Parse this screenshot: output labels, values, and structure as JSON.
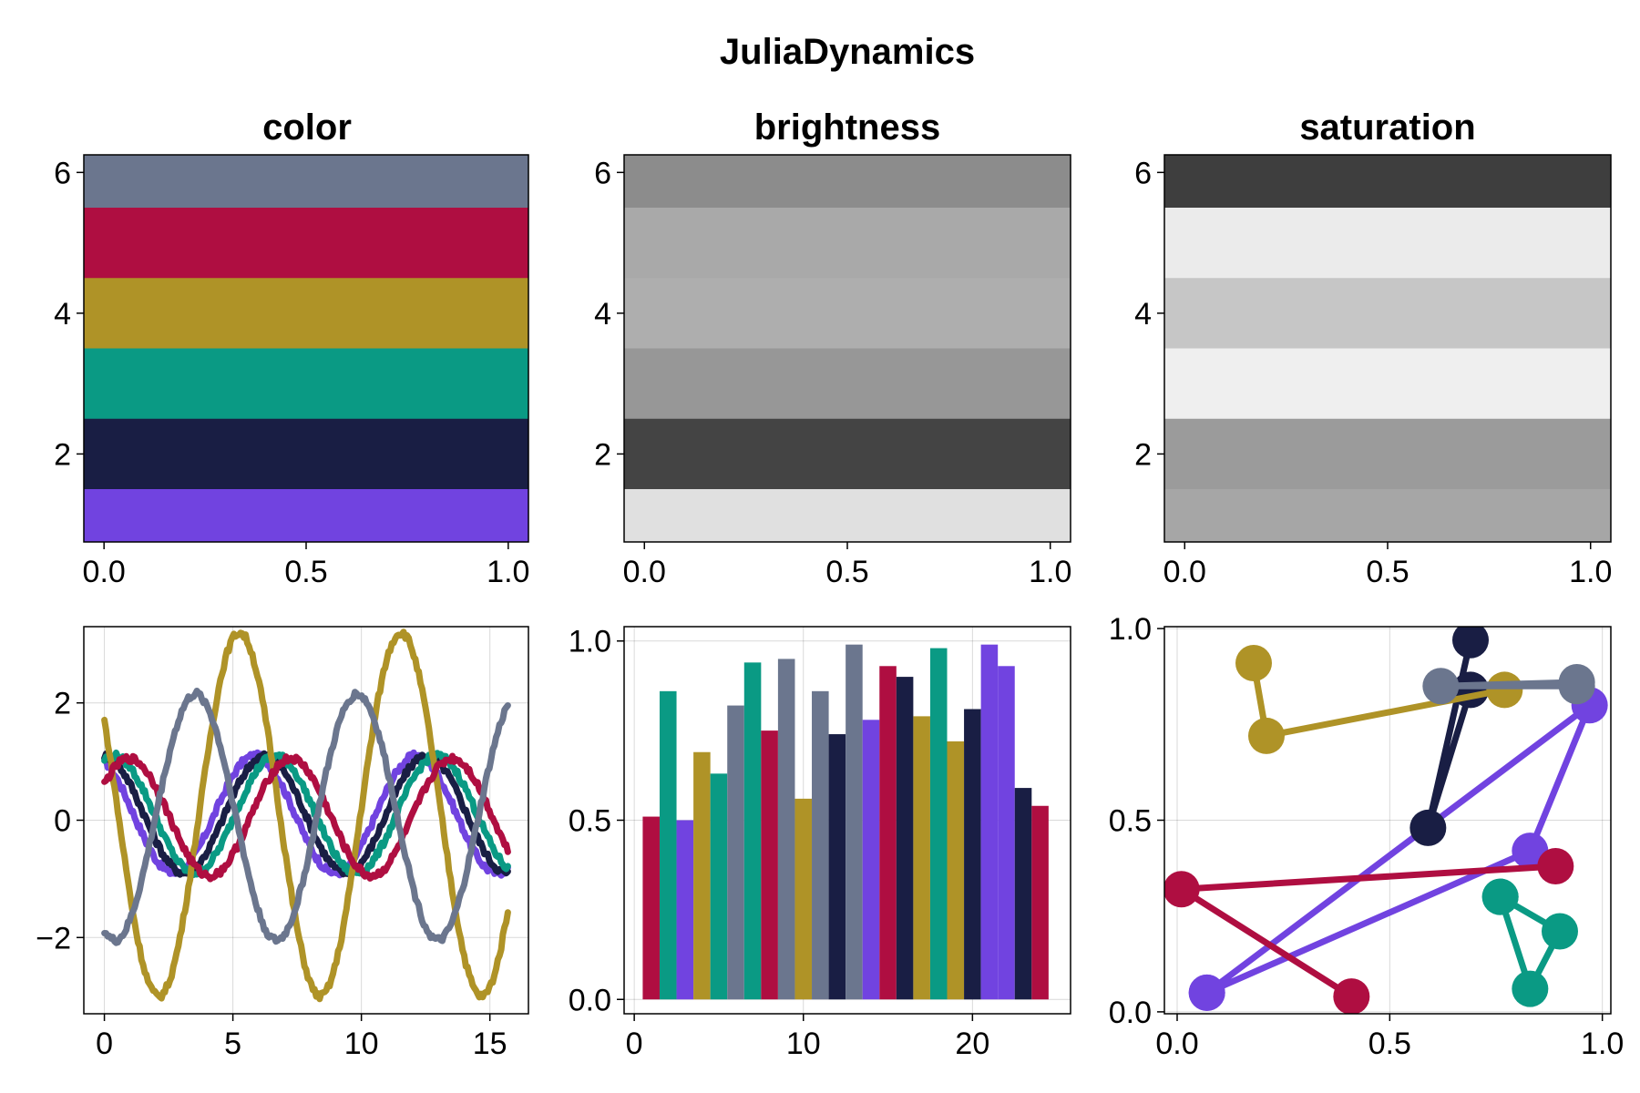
{
  "figure_title": "JuliaDynamics",
  "palette": [
    "#7143E0",
    "#191E44",
    "#0A9A84",
    "#AF9327",
    "#AF0E41",
    "#6B768E"
  ],
  "chart_data": [
    {
      "type": "heatmap",
      "title": "color",
      "xlim": [
        -0.05,
        1.05
      ],
      "ylim": [
        0.75,
        6.25
      ],
      "xticks": [
        0.0,
        0.5,
        1.0
      ],
      "xticklabels": [
        "0.0",
        "0.5",
        "1.0"
      ],
      "yticks": [
        2,
        4,
        6
      ],
      "yticklabels": [
        "2",
        "4",
        "6"
      ],
      "bands": [
        {
          "level": 1,
          "color": "#7143E0"
        },
        {
          "level": 2,
          "color": "#191E44"
        },
        {
          "level": 3,
          "color": "#0A9A84"
        },
        {
          "level": 4,
          "color": "#AF9327"
        },
        {
          "level": 5,
          "color": "#AF0E41"
        },
        {
          "level": 6,
          "color": "#6B768E"
        }
      ],
      "grid": false
    },
    {
      "type": "heatmap",
      "title": "brightness",
      "xlim": [
        -0.05,
        1.05
      ],
      "ylim": [
        0.75,
        6.25
      ],
      "xticks": [
        0.0,
        0.5,
        1.0
      ],
      "xticklabels": [
        "0.0",
        "0.5",
        "1.0"
      ],
      "yticks": [
        2,
        4,
        6
      ],
      "yticklabels": [
        "2",
        "4",
        "6"
      ],
      "bands": [
        {
          "level": 1,
          "color": "#E0E0E0"
        },
        {
          "level": 2,
          "color": "#444444"
        },
        {
          "level": 3,
          "color": "#979797"
        },
        {
          "level": 4,
          "color": "#AEAEAE"
        },
        {
          "level": 5,
          "color": "#A9A9A9"
        },
        {
          "level": 6,
          "color": "#8C8C8C"
        }
      ],
      "grid": false
    },
    {
      "type": "heatmap",
      "title": "saturation",
      "xlim": [
        -0.05,
        1.05
      ],
      "ylim": [
        0.75,
        6.25
      ],
      "xticks": [
        0.0,
        0.5,
        1.0
      ],
      "xticklabels": [
        "0.0",
        "0.5",
        "1.0"
      ],
      "yticks": [
        2,
        4,
        6
      ],
      "yticklabels": [
        "2",
        "4",
        "6"
      ],
      "bands": [
        {
          "level": 1,
          "color": "#A6A6A6"
        },
        {
          "level": 2,
          "color": "#9B9B9B"
        },
        {
          "level": 3,
          "color": "#EFEFEF"
        },
        {
          "level": 4,
          "color": "#C6C6C6"
        },
        {
          "level": 5,
          "color": "#EBEBEB"
        },
        {
          "level": 6,
          "color": "#3E3E3E"
        }
      ],
      "grid": false
    },
    {
      "type": "line",
      "title": "",
      "xlim": [
        -0.8,
        16.5
      ],
      "ylim": [
        -3.3,
        3.3
      ],
      "xticks": [
        0,
        5,
        10,
        15
      ],
      "xticklabels": [
        "0",
        "5",
        "10",
        "15"
      ],
      "yticks": [
        -2,
        0,
        2
      ],
      "yticklabels": [
        "−2",
        "0",
        "2"
      ],
      "x_range": [
        0,
        15.7
      ],
      "series": [
        {
          "color": "#7143E0",
          "amplitude": 1.0,
          "phase": 2.0,
          "offset": 0.1,
          "noise": 0.06
        },
        {
          "color": "#191E44",
          "amplitude": 1.0,
          "phase": 1.6,
          "offset": 0.1,
          "noise": 0.06
        },
        {
          "color": "#0A9A84",
          "amplitude": 1.0,
          "phase": 1.2,
          "offset": 0.1,
          "noise": 0.06
        },
        {
          "color": "#AF9327",
          "amplitude": 3.1,
          "phase": 2.6,
          "offset": 0.1,
          "noise": 0.06
        },
        {
          "color": "#AF0E41",
          "amplitude": 1.0,
          "phase": 0.6,
          "offset": 0.05,
          "noise": 0.06
        },
        {
          "color": "#6B768E",
          "amplitude": 2.1,
          "phase": 4.3,
          "offset": 0.05,
          "noise": 0.06
        }
      ],
      "grid": true
    },
    {
      "type": "bar",
      "title": "",
      "xlim": [
        -0.6,
        25.8
      ],
      "ylim": [
        -0.04,
        1.04
      ],
      "xticks": [
        0,
        10,
        20
      ],
      "xticklabels": [
        "0",
        "10",
        "20"
      ],
      "yticks": [
        0.0,
        0.5,
        1.0
      ],
      "yticklabels": [
        "0.0",
        "0.5",
        "1.0"
      ],
      "x": [
        1,
        2,
        3,
        4,
        5,
        6,
        7,
        8,
        9,
        10,
        11,
        12,
        13,
        14,
        15,
        16,
        17,
        18,
        19,
        20,
        21,
        22,
        23,
        24
      ],
      "values": [
        0.51,
        0.86,
        0.5,
        0.69,
        0.63,
        0.82,
        0.94,
        0.75,
        0.95,
        0.56,
        0.86,
        0.74,
        0.99,
        0.78,
        0.93,
        0.9,
        0.79,
        0.98,
        0.72,
        0.81,
        0.99,
        0.93,
        0.59,
        0.54
      ],
      "colors": [
        "#AF0E41",
        "#0A9A84",
        "#7143E0",
        "#AF9327",
        "#0A9A84",
        "#6B768E",
        "#0A9A84",
        "#AF0E41",
        "#6B768E",
        "#AF9327",
        "#6B768E",
        "#191E44",
        "#6B768E",
        "#7143E0",
        "#AF0E41",
        "#191E44",
        "#AF9327",
        "#0A9A84",
        "#AF9327",
        "#191E44",
        "#7143E0",
        "#7143E0",
        "#191E44",
        "#AF0E41"
      ],
      "grid": true
    },
    {
      "type": "scatter",
      "title": "",
      "xlim": [
        -0.03,
        1.02
      ],
      "ylim": [
        -0.005,
        1.005
      ],
      "xticks": [
        0.0,
        0.5,
        1.0
      ],
      "xticklabels": [
        "0.0",
        "0.5",
        "1.0"
      ],
      "yticks": [
        0.0,
        0.5,
        1.0
      ],
      "yticklabels": [
        "0.0",
        "0.5",
        "1.0"
      ],
      "series": [
        {
          "color": "#7143E0",
          "points": [
            [
              0.07,
              0.05
            ],
            [
              0.83,
              0.42
            ],
            [
              0.97,
              0.8
            ],
            [
              0.07,
              0.05
            ]
          ]
        },
        {
          "color": "#191E44",
          "points": [
            [
              0.69,
              0.97
            ],
            [
              0.59,
              0.48
            ],
            [
              0.69,
              0.84
            ]
          ]
        },
        {
          "color": "#0A9A84",
          "points": [
            [
              0.76,
              0.3
            ],
            [
              0.83,
              0.06
            ],
            [
              0.9,
              0.21
            ],
            [
              0.76,
              0.3
            ]
          ]
        },
        {
          "color": "#AF9327",
          "points": [
            [
              0.18,
              0.91
            ],
            [
              0.21,
              0.72
            ],
            [
              0.77,
              0.84
            ]
          ]
        },
        {
          "color": "#AF0E41",
          "points": [
            [
              0.41,
              0.04
            ],
            [
              0.01,
              0.32
            ],
            [
              0.89,
              0.38
            ]
          ]
        },
        {
          "color": "#6B768E",
          "points": [
            [
              0.94,
              0.86
            ],
            [
              0.62,
              0.85
            ],
            [
              0.94,
              0.85
            ]
          ]
        }
      ],
      "grid": true
    }
  ]
}
